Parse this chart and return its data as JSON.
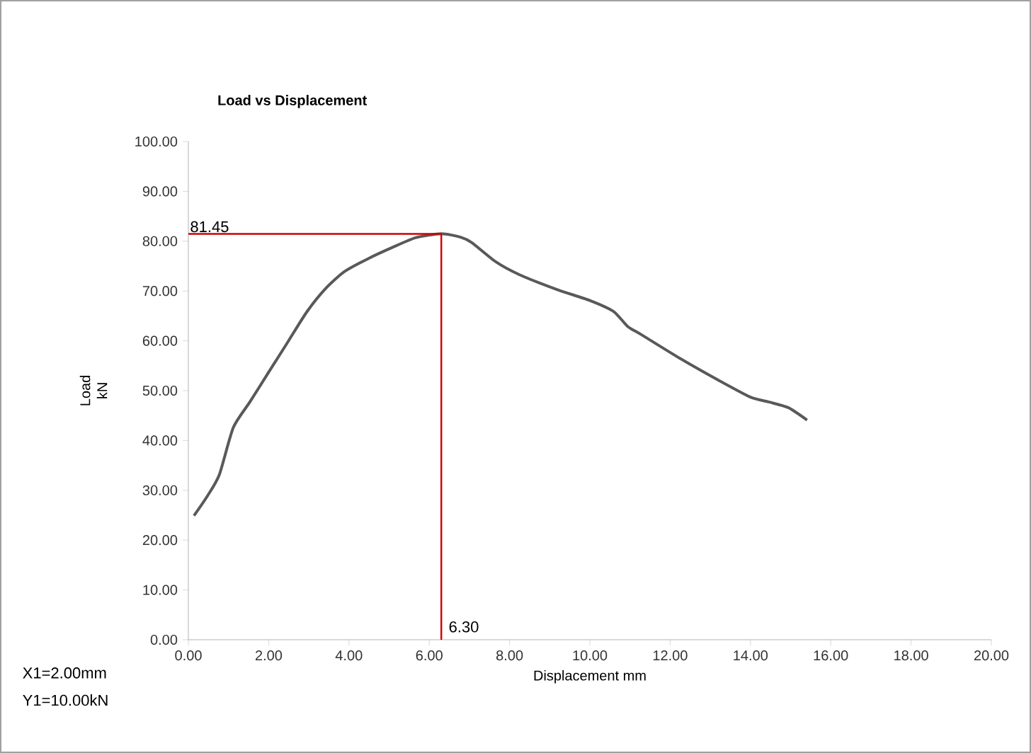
{
  "chart_data": {
    "type": "line",
    "title": "Load vs Displacement",
    "xlabel": "Displacement mm",
    "ylabel": "Load kN",
    "annotations": [
      "X1=2.00mm",
      "Y1=10.00kN"
    ],
    "xlim": [
      0,
      20
    ],
    "ylim": [
      0,
      100
    ],
    "xticks": [
      {
        "value": 0,
        "label": "0.00"
      },
      {
        "value": 2,
        "label": "2.00"
      },
      {
        "value": 4,
        "label": "4.00"
      },
      {
        "value": 6,
        "label": "6.00"
      },
      {
        "value": 8,
        "label": "8.00"
      },
      {
        "value": 10,
        "label": "10.00"
      },
      {
        "value": 12,
        "label": "12.00"
      },
      {
        "value": 14,
        "label": "14.00"
      },
      {
        "value": 16,
        "label": "16.00"
      },
      {
        "value": 18,
        "label": "18.00"
      },
      {
        "value": 20,
        "label": "20.00"
      }
    ],
    "yticks": [
      {
        "value": 0,
        "label": "0.00"
      },
      {
        "value": 10,
        "label": "10.00"
      },
      {
        "value": 20,
        "label": "20.00"
      },
      {
        "value": 30,
        "label": "30.00"
      },
      {
        "value": 40,
        "label": "40.00"
      },
      {
        "value": 50,
        "label": "50.00"
      },
      {
        "value": 60,
        "label": "60.00"
      },
      {
        "value": 70,
        "label": "70.00"
      },
      {
        "value": 80,
        "label": "80.00"
      },
      {
        "value": 90,
        "label": "90.00"
      },
      {
        "value": 100,
        "label": "100.00"
      }
    ],
    "grid": false,
    "marker": "none",
    "line_style": "solid",
    "series": [
      {
        "color": "#595959",
        "x": [
          0.14,
          0.47,
          0.77,
          1.12,
          1.53,
          2.0,
          2.48,
          2.95,
          3.42,
          3.89,
          4.48,
          5.07,
          5.66,
          6.3,
          6.78,
          7.06,
          7.65,
          8.24,
          9.18,
          10.0,
          10.59,
          10.94,
          11.29,
          12.24,
          13.18,
          14.0,
          14.47,
          14.94,
          15.41
        ],
        "values": [
          24.9,
          28.8,
          33.1,
          42.6,
          47.7,
          53.7,
          59.8,
          65.8,
          70.5,
          73.9,
          76.5,
          78.7,
          80.7,
          81.5,
          80.8,
          79.7,
          75.9,
          73.3,
          70.3,
          68.1,
          65.9,
          62.9,
          61.2,
          56.5,
          52.2,
          48.7,
          47.7,
          46.6,
          44.1
        ]
      }
    ],
    "ref_lines": [
      {
        "axis": "y",
        "value": 81.45,
        "label": "81.45",
        "color": "#d00000"
      },
      {
        "axis": "x",
        "value": 6.3,
        "label": "6.30",
        "color": "#d00000"
      }
    ]
  }
}
